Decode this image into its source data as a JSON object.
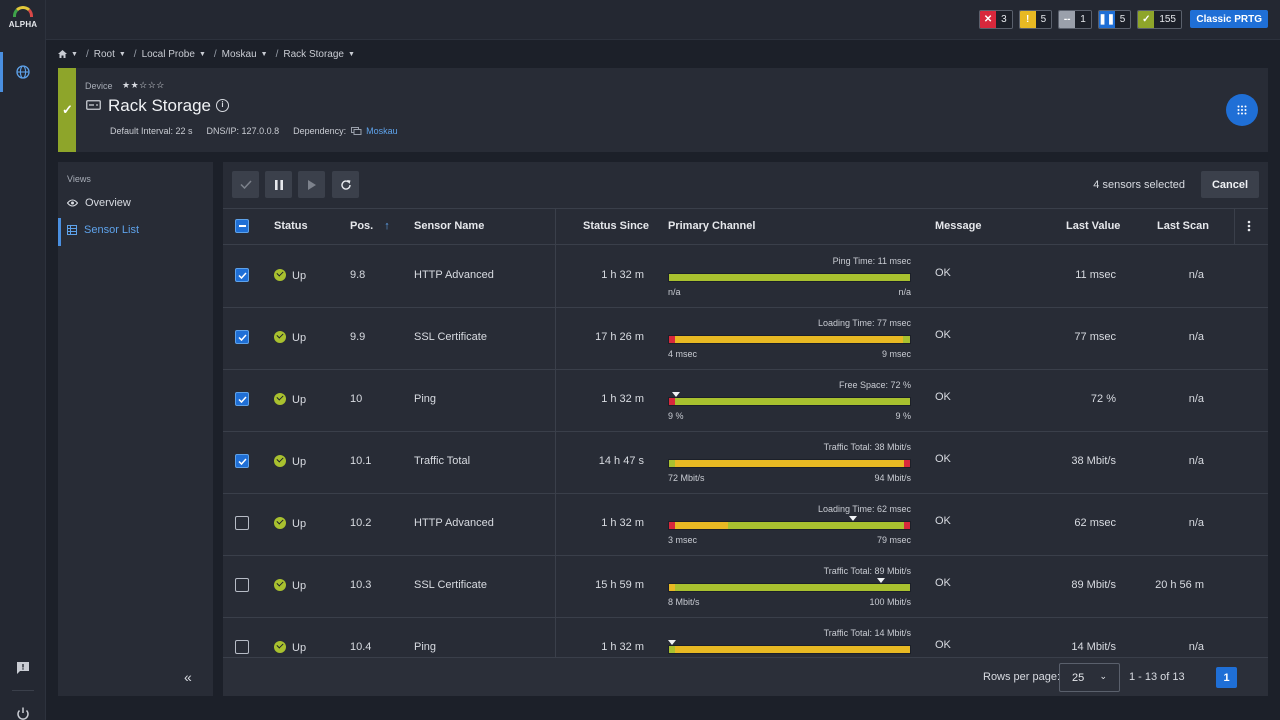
{
  "app": {
    "logo_text": "ALPHA"
  },
  "topbar": {
    "counters": [
      {
        "name": "down-counter",
        "icon": "x-icon",
        "glyph": "✕",
        "color": "#d8283c",
        "value": "3"
      },
      {
        "name": "warning-counter",
        "icon": "exclamation-icon",
        "glyph": "!",
        "color": "#e8b923",
        "value": "5"
      },
      {
        "name": "unknown-counter",
        "icon": "dash-icon",
        "glyph": "--",
        "color": "#9aa0ab",
        "value": "1"
      },
      {
        "name": "paused-counter",
        "icon": "pause-icon",
        "glyph": "❚❚",
        "color": "#1f6fd6",
        "value": "5"
      },
      {
        "name": "up-counter",
        "icon": "check-icon",
        "glyph": "✓",
        "color": "#8ea52a",
        "value": "155"
      }
    ],
    "classic_button": "Classic PRTG"
  },
  "breadcrumb": [
    "Root",
    "Local Probe",
    "Moskau",
    "Rack Storage"
  ],
  "device": {
    "label": "Device",
    "stars": "★★☆☆☆",
    "title": "Rack Storage",
    "interval": "Default Interval: 22 s",
    "dns": "DNS/IP: 127.0.0.8",
    "dependency_label": "Dependency:",
    "dependency_value": "Moskau"
  },
  "views": {
    "title": "Views",
    "items": [
      {
        "label": "Overview",
        "icon": "eye-icon"
      },
      {
        "label": "Sensor List",
        "icon": "table-icon"
      }
    ],
    "collapse_glyph": "«"
  },
  "toolbar": {
    "selected_text": "4 sensors selected",
    "cancel_label": "Cancel"
  },
  "table": {
    "columns": {
      "status": "Status",
      "pos": "Pos.",
      "sort_arrow": "↑",
      "name": "Sensor Name",
      "since": "Status Since",
      "channel": "Primary Channel",
      "message": "Message",
      "last_value": "Last Value",
      "last_scan": "Last Scan"
    },
    "rows": [
      {
        "checked": true,
        "status": "Up",
        "pos": "9.8",
        "name": "HTTP Advanced",
        "since": "1 h 32 m",
        "channel": "Ping Time: 11 msec",
        "min": "n/a",
        "max": "n/a",
        "message": "OK",
        "last_value": "11 msec",
        "last_scan": "n/a"
      },
      {
        "checked": true,
        "status": "Up",
        "pos": "9.9",
        "name": "SSL Certificate",
        "since": "17 h 26 m",
        "channel": "Loading Time: 77 msec",
        "min": "4 msec",
        "max": "9 msec",
        "message": "OK",
        "last_value": "77 msec",
        "last_scan": "n/a"
      },
      {
        "checked": true,
        "status": "Up",
        "pos": "10",
        "name": "Ping",
        "since": "1 h 32 m",
        "channel": "Free Space: 72 %",
        "min": "9 %",
        "max": "9 %",
        "message": "OK",
        "last_value": "72 %",
        "last_scan": "n/a"
      },
      {
        "checked": true,
        "status": "Up",
        "pos": "10.1",
        "name": "Traffic Total",
        "since": "14 h 47 s",
        "channel": "Traffic Total: 38 Mbit/s",
        "min": "72 Mbit/s",
        "max": "94 Mbit/s",
        "message": "OK",
        "last_value": "38 Mbit/s",
        "last_scan": "n/a"
      },
      {
        "checked": false,
        "status": "Up",
        "pos": "10.2",
        "name": "HTTP Advanced",
        "since": "1 h 32 m",
        "channel": "Loading Time: 62 msec",
        "min": "3 msec",
        "max": "79 msec",
        "message": "OK",
        "last_value": "62 msec",
        "last_scan": "n/a"
      },
      {
        "checked": false,
        "status": "Up",
        "pos": "10.3",
        "name": "SSL Certificate",
        "since": "15 h 59 m",
        "channel": "Traffic Total: 89 Mbit/s",
        "min": "8 Mbit/s",
        "max": "100 Mbit/s",
        "message": "OK",
        "last_value": "89 Mbit/s",
        "last_scan": "20 h 56 m"
      },
      {
        "checked": false,
        "status": "Up",
        "pos": "10.4",
        "name": "Ping",
        "since": "1 h 32 m",
        "channel": "Traffic Total: 14 Mbit/s",
        "min": "",
        "max": "",
        "message": "OK",
        "last_value": "14 Mbit/s",
        "last_scan": "n/a"
      }
    ]
  },
  "footer": {
    "rows_per_page_label": "Rows per page:",
    "rows_per_page_value": "25",
    "range": "1 - 13 of 13",
    "page": "1"
  },
  "colors": {
    "accent": "#1f6fd6",
    "up": "#a9c12f",
    "warning": "#e8b923",
    "down": "#d8283c"
  }
}
